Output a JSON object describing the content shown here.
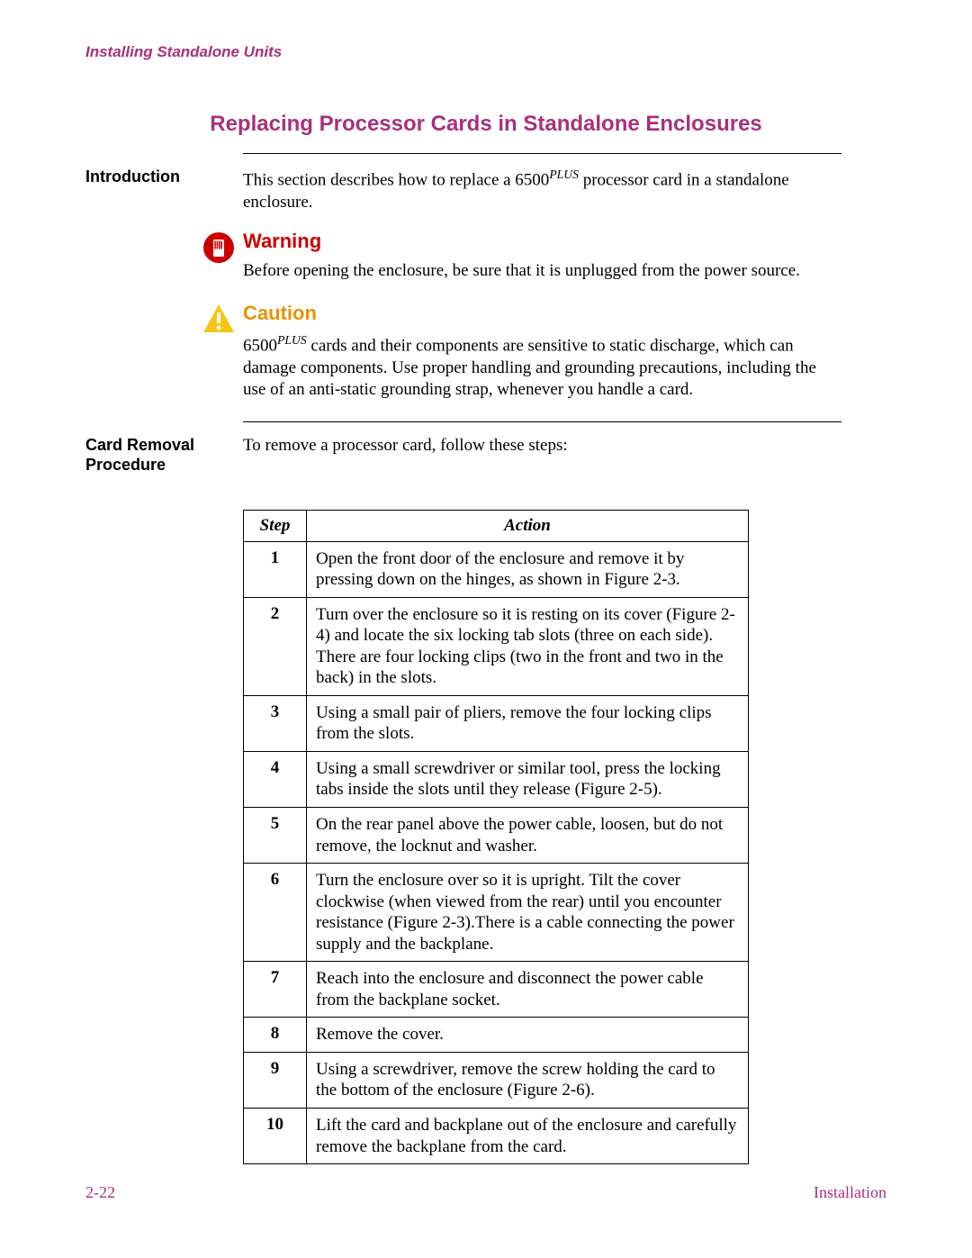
{
  "running_head": "Installing Standalone Units",
  "title": "Replacing Processor Cards in Standalone Enclosures",
  "intro": {
    "label": "Introduction",
    "text_pre": "This section describes how to replace a 6500",
    "sup": "PLUS",
    "text_post": " processor card in a standalone enclosure."
  },
  "warning": {
    "title": "Warning",
    "text": "Before opening the enclosure, be sure that it is unplugged from the power source."
  },
  "caution": {
    "title": "Caution",
    "text_pre": "6500",
    "sup": "PLUS",
    "text_post": " cards and their components are sensitive to static discharge, which can damage components. Use proper handling and grounding precautions, including the use of an anti-static grounding strap, whenever you handle a card."
  },
  "procedure": {
    "label": "Card Removal Procedure",
    "intro": "To remove a processor card, follow these steps:"
  },
  "table": {
    "headers": {
      "step": "Step",
      "action": "Action"
    },
    "rows": [
      {
        "n": "1",
        "a": "Open the front door of the enclosure and remove it by pressing down on the hinges, as shown in Figure 2-3."
      },
      {
        "n": "2",
        "a": "Turn over the enclosure so it is resting on its cover (Figure 2-4) and locate the six locking tab slots (three on each side). There are four locking clips (two in the front and two in the back) in the slots."
      },
      {
        "n": "3",
        "a": "Using a small pair of pliers, remove the four locking clips from the slots."
      },
      {
        "n": "4",
        "a": "Using a small screwdriver or similar tool, press the locking tabs inside the slots until they release (Figure 2-5)."
      },
      {
        "n": "5",
        "a": "On the rear panel above the power cable, loosen, but do not remove, the locknut and washer."
      },
      {
        "n": "6",
        "a": "Turn the enclosure over so it is upright. Tilt the cover clockwise (when viewed from the rear) until you encounter resistance (Figure 2-3).There is a cable connecting the power supply and the backplane."
      },
      {
        "n": "7",
        "a": "Reach into the enclosure and disconnect the power cable from the backplane socket."
      },
      {
        "n": "8",
        "a": "Remove the cover."
      },
      {
        "n": "9",
        "a": "Using a screwdriver, remove the screw holding the card to the bottom of the enclosure (Figure 2-6)."
      },
      {
        "n": "10",
        "a": "Lift the card and backplane out of the enclosure and carefully remove the backplane from the card."
      }
    ]
  },
  "footer": {
    "page": "2-22",
    "section": "Installation"
  },
  "colors": {
    "brand": "#a6317f",
    "warning_red": "#cc0000",
    "caution_orange": "#e59400",
    "caution_triangle": "#f5c518"
  }
}
